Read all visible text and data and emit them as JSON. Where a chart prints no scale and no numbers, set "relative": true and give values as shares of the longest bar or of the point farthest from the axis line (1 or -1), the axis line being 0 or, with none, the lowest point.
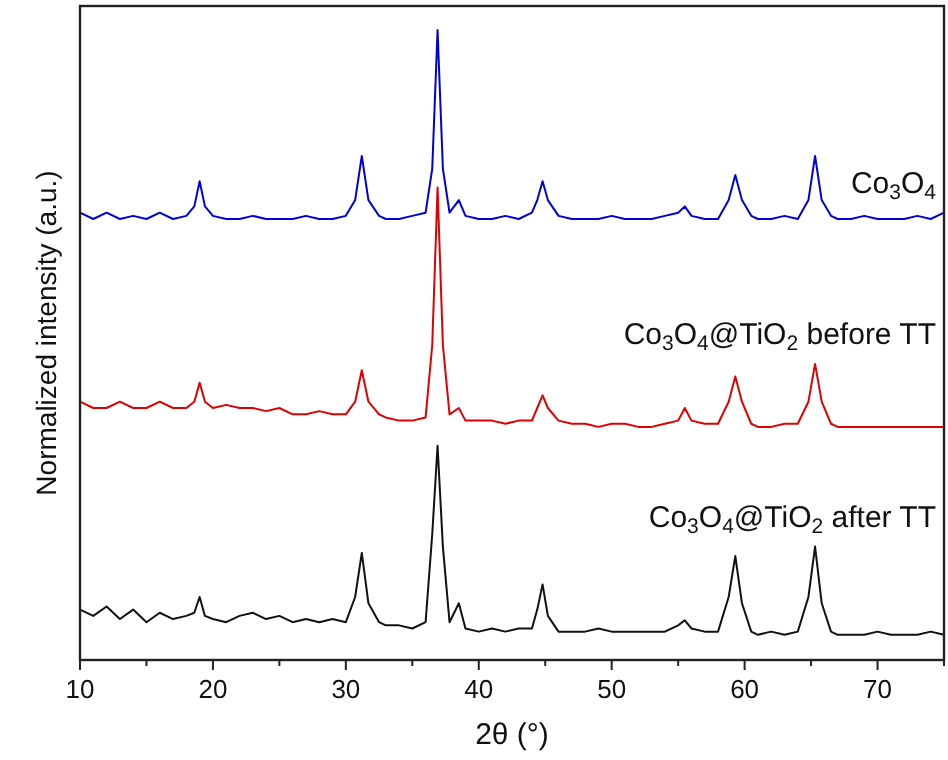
{
  "chart_data": {
    "type": "line",
    "relative": true,
    "xlabel": "2θ (°)",
    "ylabel": "Normalized intensity (a.u.)",
    "xlim": [
      10,
      75
    ],
    "xticks": [
      10,
      {
        "value": 15,
        "label": null
      },
      20,
      {
        "value": 25,
        "label": null
      },
      30,
      {
        "value": 35,
        "label": null
      },
      40,
      {
        "value": 45,
        "label": null
      },
      50,
      {
        "value": 55,
        "label": null
      },
      60,
      {
        "value": 65,
        "label": null
      },
      70,
      {
        "value": 75,
        "label": null
      }
    ],
    "x": [
      10,
      11,
      12,
      13,
      14,
      15,
      16,
      17,
      18,
      18.6,
      19,
      19.4,
      20,
      21,
      22,
      23,
      24,
      25,
      26,
      27,
      28,
      29,
      30,
      30.7,
      31.2,
      31.7,
      32.5,
      33,
      34,
      35,
      36,
      36.5,
      36.9,
      37.3,
      37.8,
      38.5,
      39,
      40,
      41,
      42,
      43,
      44,
      44.4,
      44.8,
      45.2,
      46,
      47,
      48,
      49,
      50,
      51,
      52,
      53,
      54,
      55,
      55.5,
      56,
      57,
      58,
      58.8,
      59.3,
      59.8,
      60.5,
      61,
      62,
      63,
      64,
      64.8,
      65.3,
      65.8,
      66.5,
      67,
      68,
      69,
      70,
      71,
      72,
      73,
      74,
      75
    ],
    "series": [
      {
        "name": "Co$_{3}$O$_{4}$",
        "color": "#0000dd",
        "values": [
          0.71,
          0.7,
          0.71,
          0.7,
          0.705,
          0.7,
          0.71,
          0.7,
          0.705,
          0.72,
          0.76,
          0.72,
          0.705,
          0.7,
          0.7,
          0.705,
          0.7,
          0.7,
          0.7,
          0.705,
          0.7,
          0.7,
          0.705,
          0.73,
          0.8,
          0.73,
          0.705,
          0.7,
          0.7,
          0.705,
          0.71,
          0.78,
          1.0,
          0.78,
          0.71,
          0.73,
          0.705,
          0.7,
          0.7,
          0.705,
          0.7,
          0.71,
          0.73,
          0.76,
          0.73,
          0.705,
          0.7,
          0.7,
          0.7,
          0.705,
          0.7,
          0.7,
          0.7,
          0.705,
          0.71,
          0.72,
          0.705,
          0.7,
          0.7,
          0.73,
          0.77,
          0.73,
          0.705,
          0.7,
          0.7,
          0.705,
          0.7,
          0.73,
          0.8,
          0.73,
          0.705,
          0.7,
          0.7,
          0.705,
          0.7,
          0.7,
          0.7,
          0.705,
          0.7,
          0.71
        ]
      },
      {
        "name": "Co$_{3}$O$_{4}$@TiO$_{2}$ before TT",
        "color": "#e00000",
        "values": [
          0.41,
          0.4,
          0.4,
          0.41,
          0.4,
          0.4,
          0.41,
          0.4,
          0.4,
          0.41,
          0.44,
          0.41,
          0.4,
          0.405,
          0.4,
          0.4,
          0.395,
          0.4,
          0.39,
          0.39,
          0.395,
          0.39,
          0.39,
          0.41,
          0.46,
          0.41,
          0.39,
          0.385,
          0.38,
          0.38,
          0.385,
          0.5,
          0.75,
          0.5,
          0.39,
          0.4,
          0.38,
          0.38,
          0.38,
          0.375,
          0.38,
          0.38,
          0.4,
          0.42,
          0.4,
          0.38,
          0.375,
          0.375,
          0.37,
          0.375,
          0.375,
          0.37,
          0.37,
          0.375,
          0.38,
          0.4,
          0.38,
          0.375,
          0.375,
          0.41,
          0.45,
          0.41,
          0.375,
          0.37,
          0.37,
          0.375,
          0.375,
          0.41,
          0.47,
          0.41,
          0.375,
          0.37,
          0.37,
          0.37,
          0.37,
          0.37,
          0.37,
          0.37,
          0.37,
          0.37
        ]
      },
      {
        "name": "Co$_{3}$O$_{4}$@TiO$_{2}$ after TT",
        "color": "#111111",
        "values": [
          0.08,
          0.07,
          0.085,
          0.065,
          0.08,
          0.06,
          0.075,
          0.065,
          0.07,
          0.075,
          0.1,
          0.07,
          0.065,
          0.06,
          0.07,
          0.075,
          0.065,
          0.07,
          0.06,
          0.065,
          0.06,
          0.065,
          0.06,
          0.1,
          0.17,
          0.09,
          0.06,
          0.055,
          0.055,
          0.05,
          0.06,
          0.2,
          0.34,
          0.18,
          0.06,
          0.09,
          0.05,
          0.045,
          0.05,
          0.045,
          0.05,
          0.05,
          0.08,
          0.12,
          0.07,
          0.045,
          0.045,
          0.045,
          0.05,
          0.045,
          0.045,
          0.045,
          0.045,
          0.045,
          0.055,
          0.063,
          0.05,
          0.045,
          0.045,
          0.1,
          0.165,
          0.09,
          0.045,
          0.04,
          0.045,
          0.04,
          0.045,
          0.1,
          0.18,
          0.09,
          0.045,
          0.04,
          0.04,
          0.04,
          0.045,
          0.04,
          0.04,
          0.04,
          0.045,
          0.04
        ]
      }
    ]
  }
}
